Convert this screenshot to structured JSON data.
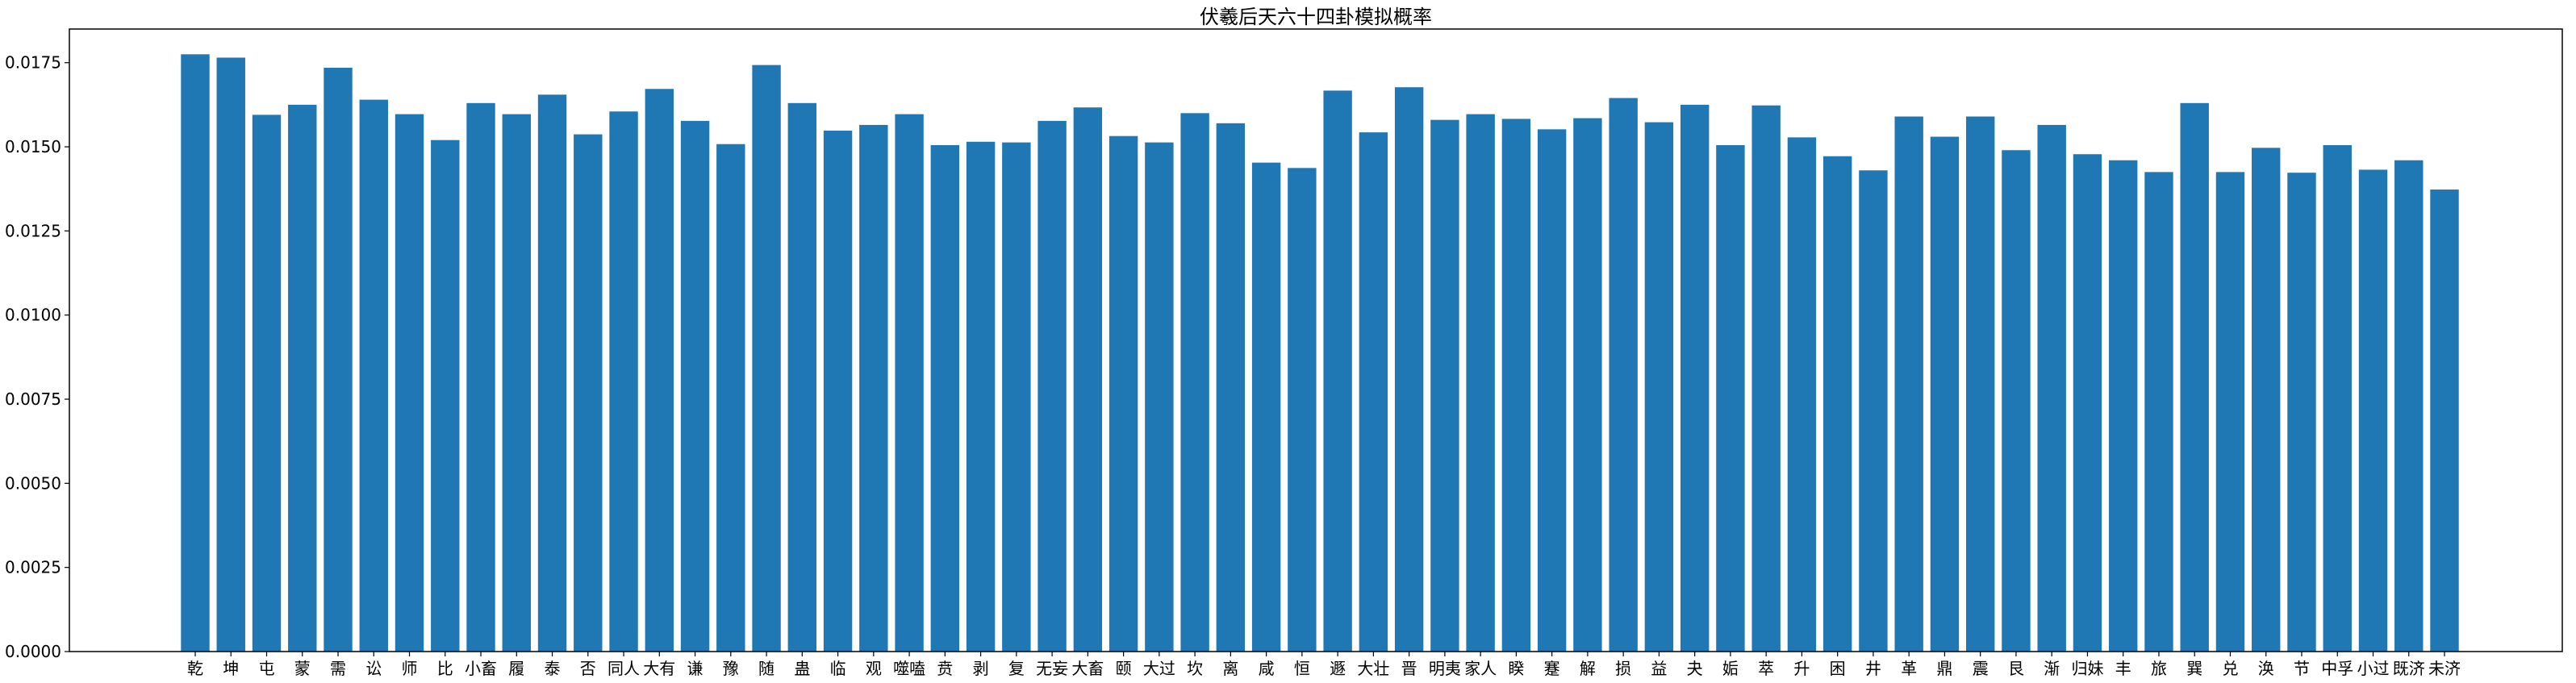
{
  "chart_data": {
    "type": "bar",
    "title": "伏羲后天六十四卦模拟概率",
    "xlabel": "",
    "ylabel": "",
    "ylim": [
      0,
      0.0185
    ],
    "yticks": [
      0.0,
      0.0025,
      0.005,
      0.0075,
      0.01,
      0.0125,
      0.015,
      0.0175
    ],
    "ytick_labels": [
      "0.0000",
      "0.0025",
      "0.0050",
      "0.0075",
      "0.0100",
      "0.0125",
      "0.0150",
      "0.0175"
    ],
    "grid": false,
    "bar_color": "#1f77b4",
    "categories": [
      "乾",
      "坤",
      "屯",
      "蒙",
      "需",
      "讼",
      "师",
      "比",
      "小畜",
      "履",
      "泰",
      "否",
      "同人",
      "大有",
      "谦",
      "豫",
      "随",
      "蛊",
      "临",
      "观",
      "噬嗑",
      "贲",
      "剥",
      "复",
      "无妄",
      "大畜",
      "颐",
      "大过",
      "坎",
      "离",
      "咸",
      "恒",
      "遯",
      "大壮",
      "晋",
      "明夷",
      "家人",
      "睽",
      "蹇",
      "解",
      "损",
      "益",
      "夬",
      "姤",
      "萃",
      "升",
      "困",
      "井",
      "革",
      "鼎",
      "震",
      "艮",
      "渐",
      "归妹",
      "丰",
      "旅",
      "巽",
      "兑",
      "涣",
      "节",
      "中孚",
      "小过",
      "既济",
      "未济"
    ],
    "values": [
      0.01775,
      0.01765,
      0.01595,
      0.01625,
      0.01735,
      0.0164,
      0.01597,
      0.0152,
      0.0163,
      0.01597,
      0.01655,
      0.01537,
      0.01605,
      0.01672,
      0.01577,
      0.01508,
      0.01743,
      0.0163,
      0.01548,
      0.01565,
      0.01597,
      0.01505,
      0.01515,
      0.01513,
      0.01577,
      0.01617,
      0.01532,
      0.01513,
      0.016,
      0.0157,
      0.01453,
      0.01437,
      0.01667,
      0.01543,
      0.01677,
      0.0158,
      0.01597,
      0.01583,
      0.01552,
      0.01585,
      0.01645,
      0.01573,
      0.01625,
      0.01505,
      0.01623,
      0.01528,
      0.01472,
      0.0143,
      0.0159,
      0.0153,
      0.0159,
      0.0149,
      0.01565,
      0.01478,
      0.0146,
      0.01425,
      0.0163,
      0.01425,
      0.01497,
      0.01423,
      0.01505,
      0.01432,
      0.0146,
      0.01373
    ]
  }
}
